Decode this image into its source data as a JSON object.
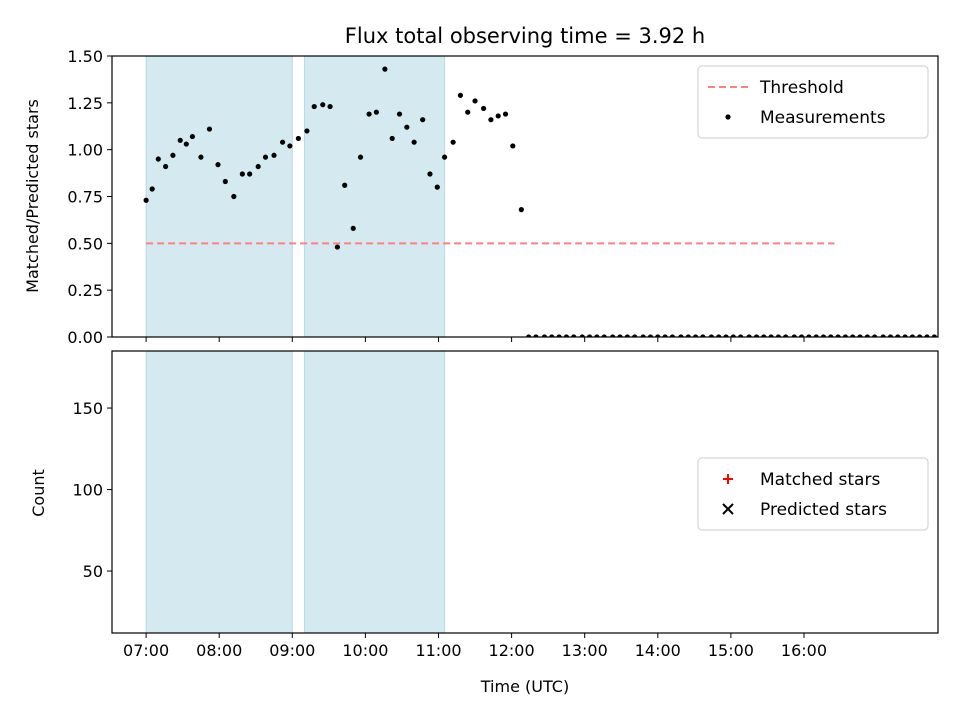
{
  "chart_data": [
    {
      "type": "scatter",
      "title": "Flux total observing time = 3.92 h",
      "xlabel": "",
      "ylabel": "Matched/Predicted stars",
      "xlim": [
        "06:32",
        "17:50"
      ],
      "ylim": [
        0,
        1.5
      ],
      "yticks": [
        "0.00",
        "0.25",
        "0.50",
        "0.75",
        "1.00",
        "1.25",
        "1.50"
      ],
      "xticks": [
        "07:00",
        "08:00",
        "09:00",
        "10:00",
        "11:00",
        "12:00",
        "13:00",
        "14:00",
        "15:00",
        "16:00"
      ],
      "x_tick_labels_shown": false,
      "grid": false,
      "legend": "upper right",
      "shaded_intervals": [
        [
          "07:00",
          "09:00"
        ],
        [
          "09:10",
          "11:05"
        ]
      ],
      "shade_color": "#d4eaf0",
      "threshold": {
        "name": "Threshold",
        "value": 0.5,
        "x_range": [
          "07:00",
          "16:25"
        ],
        "color": "#ff7f7f",
        "style": "dashed"
      },
      "series": [
        {
          "name": "Measurements",
          "color": "#000000",
          "marker": "dot",
          "x": [
            "07:00",
            "07:05",
            "07:10",
            "07:16",
            "07:22",
            "07:28",
            "07:33",
            "07:38",
            "07:45",
            "07:52",
            "07:59",
            "08:05",
            "08:12",
            "08:19",
            "08:25",
            "08:32",
            "08:38",
            "08:45",
            "08:52",
            "08:58",
            "09:05",
            "09:12",
            "09:18",
            "09:25",
            "09:31",
            "09:37",
            "09:43",
            "09:50",
            "09:56",
            "10:03",
            "10:09",
            "10:16",
            "10:22",
            "10:28",
            "10:34",
            "10:40",
            "10:47",
            "10:53",
            "10:59",
            "11:05",
            "11:12",
            "11:18",
            "11:24",
            "11:30",
            "11:37",
            "11:43",
            "11:49",
            "11:55",
            "12:01",
            "12:08",
            "12:14",
            "12:20",
            "12:27",
            "12:33",
            "12:39",
            "12:45",
            "12:51",
            "12:58",
            "13:04",
            "13:10",
            "13:16",
            "13:23",
            "13:29",
            "13:35",
            "13:41",
            "13:48",
            "13:54",
            "14:00",
            "14:06",
            "14:12",
            "14:19",
            "14:25",
            "14:31",
            "14:37",
            "14:44",
            "14:50",
            "14:56",
            "15:02",
            "15:08",
            "15:15",
            "15:21",
            "15:27",
            "15:33",
            "15:39",
            "15:45",
            "15:52",
            "15:58",
            "16:04",
            "16:10",
            "16:16",
            "16:22",
            "16:28",
            "16:34",
            "16:40",
            "16:46",
            "16:52",
            "16:58",
            "17:05",
            "17:11",
            "17:17",
            "17:23",
            "17:29",
            "17:35",
            "17:41",
            "17:47"
          ],
          "y": [
            0.73,
            0.79,
            0.95,
            0.91,
            0.97,
            1.05,
            1.03,
            1.07,
            0.96,
            1.11,
            0.92,
            0.83,
            0.75,
            0.87,
            0.87,
            0.91,
            0.96,
            0.97,
            1.04,
            1.02,
            1.06,
            1.1,
            1.23,
            1.24,
            1.23,
            0.48,
            0.81,
            0.58,
            0.96,
            1.19,
            1.2,
            1.43,
            1.06,
            1.19,
            1.12,
            1.04,
            1.16,
            0.87,
            0.8,
            0.96,
            1.04,
            1.29,
            1.2,
            1.26,
            1.22,
            1.16,
            1.18,
            1.19,
            1.02,
            0.68,
            0,
            0,
            0,
            0,
            0,
            0,
            0,
            0,
            0,
            0,
            0,
            0,
            0,
            0,
            0,
            0,
            0,
            0,
            0,
            0,
            0,
            0,
            0,
            0,
            0,
            0,
            0,
            0,
            0,
            0,
            0,
            0,
            0,
            0,
            0,
            0,
            0,
            0,
            0,
            0,
            0,
            0,
            0,
            0,
            0,
            0,
            0,
            0,
            0,
            0,
            0,
            0,
            0,
            0,
            0
          ]
        }
      ]
    },
    {
      "type": "scatter",
      "title": "",
      "xlabel": "Time (UTC)",
      "ylabel": "Count",
      "xlim": [
        "06:32",
        "17:50"
      ],
      "ylim": [
        12,
        185
      ],
      "yticks": [
        "50",
        "100",
        "150"
      ],
      "xticks": [
        "07:00",
        "08:00",
        "09:00",
        "10:00",
        "11:00",
        "12:00",
        "13:00",
        "14:00",
        "15:00",
        "16:00"
      ],
      "grid": false,
      "legend": "center right",
      "shaded_intervals": [
        [
          "07:00",
          "09:00"
        ],
        [
          "09:10",
          "11:05"
        ]
      ],
      "shade_color": "#d4eaf0",
      "series": [
        {
          "name": "Matched stars",
          "color": "#ff0000",
          "marker": "plus",
          "x": [],
          "y": []
        },
        {
          "name": "Predicted stars",
          "color": "#000000",
          "marker": "x",
          "x": [],
          "y": []
        }
      ]
    }
  ]
}
